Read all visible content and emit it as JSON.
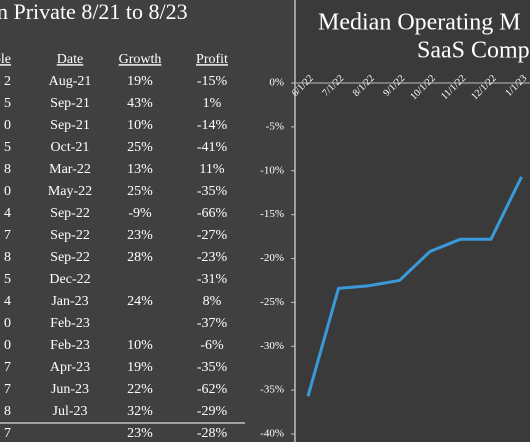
{
  "table": {
    "title": "n Private 8/21 to 8/23",
    "columns": [
      "iple",
      "Date",
      "Growth",
      "Profit"
    ],
    "rows": [
      [
        "2",
        "Aug-21",
        "19%",
        "-15%"
      ],
      [
        "5",
        "Sep-21",
        "43%",
        "1%"
      ],
      [
        "0",
        "Sep-21",
        "10%",
        "-14%"
      ],
      [
        "5",
        "Oct-21",
        "25%",
        "-41%"
      ],
      [
        "8",
        "Mar-22",
        "13%",
        "11%"
      ],
      [
        "0",
        "May-22",
        "25%",
        "-35%"
      ],
      [
        "4",
        "Sep-22",
        "-9%",
        "-66%"
      ],
      [
        "7",
        "Sep-22",
        "23%",
        "-27%"
      ],
      [
        "8",
        "Sep-22",
        "28%",
        "-23%"
      ],
      [
        "5",
        "Dec-22",
        null,
        "-31%"
      ],
      [
        "4",
        "Jan-23",
        "24%",
        "8%"
      ],
      [
        "0",
        "Feb-23",
        null,
        "-37%"
      ],
      [
        "0",
        "Feb-23",
        "10%",
        "-6%"
      ],
      [
        "7",
        "Apr-23",
        "19%",
        "-35%"
      ],
      [
        "7",
        "Jun-23",
        "22%",
        "-62%"
      ],
      [
        "8",
        "Jul-23",
        "32%",
        "-29%"
      ],
      [
        "7",
        null,
        "23%",
        "-28%"
      ]
    ]
  },
  "chart_data": {
    "type": "line",
    "title_lines": [
      "Median Operating M",
      "SaaS Comp"
    ],
    "categories": [
      "6/1/22",
      "7/1/22",
      "8/1/22",
      "9/1/22",
      "10/1/22",
      "11/1/22",
      "12/1/22",
      "1/1/23"
    ],
    "values": [
      -35.7,
      -23.4,
      -23.1,
      -22.5,
      -19.2,
      -17.8,
      -17.8,
      -10.7
    ],
    "color": "#3a9ad9",
    "ylim": [
      -40,
      0
    ],
    "yticks": [
      {
        "value": 0,
        "label": "0%"
      },
      {
        "value": -5,
        "label": "-5%"
      },
      {
        "value": -10,
        "label": "-10%"
      },
      {
        "value": -15,
        "label": "-15%"
      },
      {
        "value": -20,
        "label": "-20%"
      },
      {
        "value": -25,
        "label": "-25%"
      },
      {
        "value": -30,
        "label": "-30%"
      },
      {
        "value": -35,
        "label": "-35%"
      },
      {
        "value": -40,
        "label": "-40%"
      }
    ]
  }
}
